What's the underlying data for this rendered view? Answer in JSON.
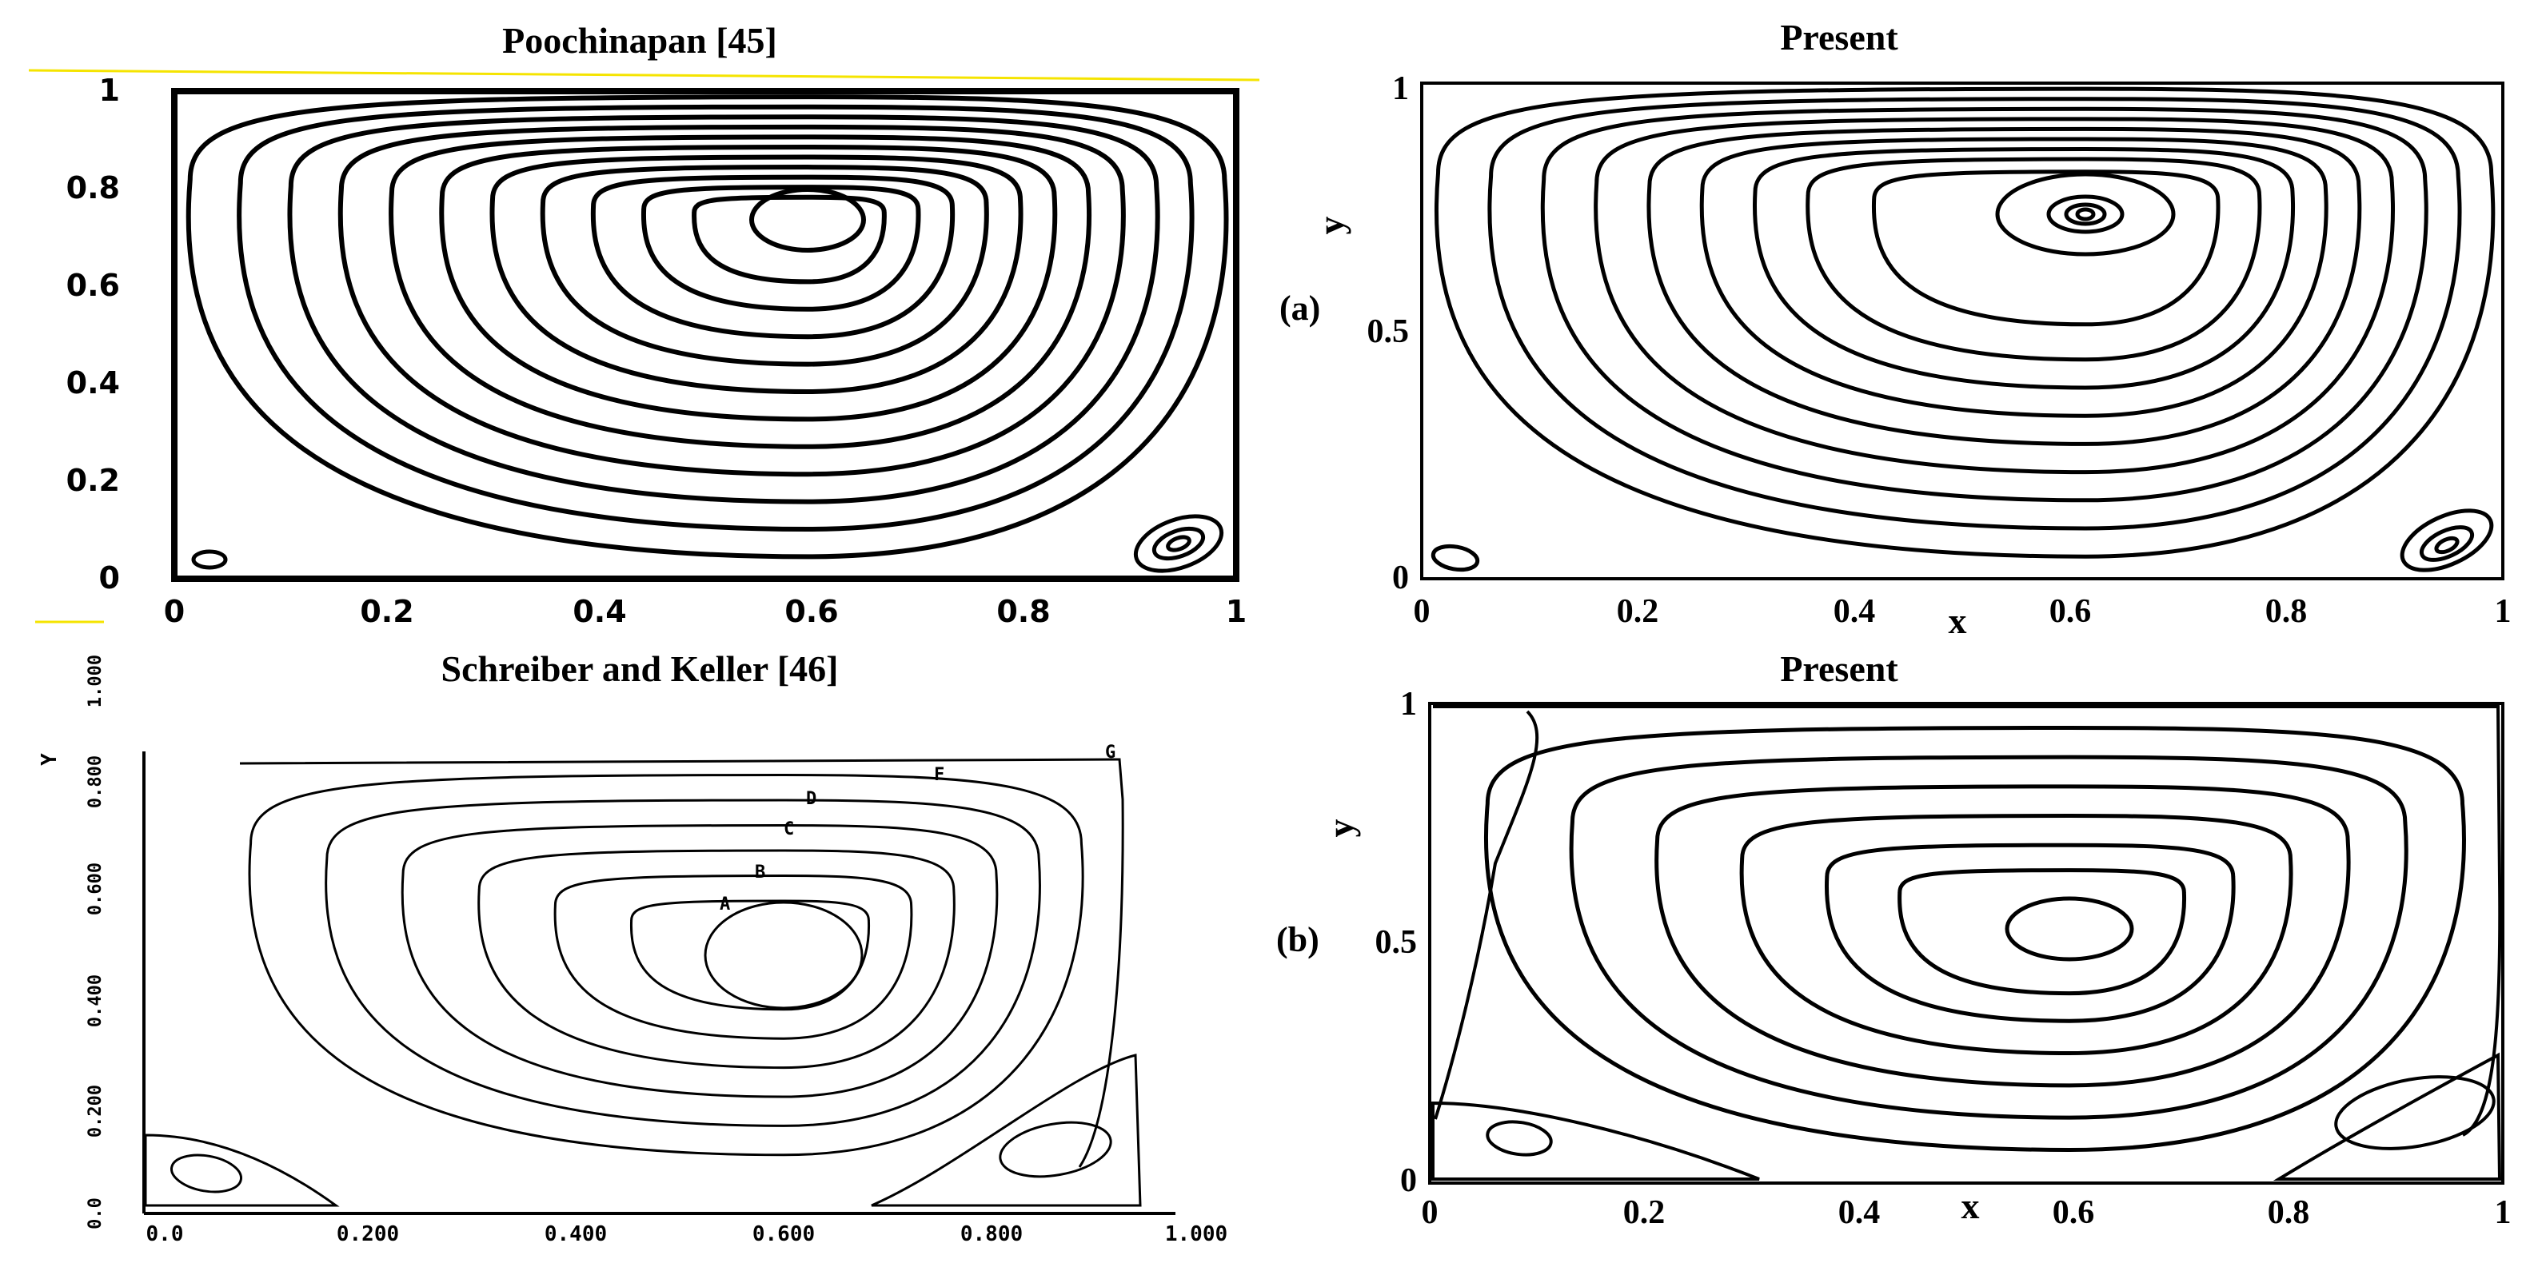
{
  "panels": [
    {
      "id": "poochinapan",
      "title": "Poochinapan [45]",
      "x_ticks": [
        "0",
        "0.2",
        "0.4",
        "0.6",
        "0.8",
        "1"
      ],
      "y_ticks": [
        "0",
        "0.2",
        "0.4",
        "0.6",
        "0.8",
        "1"
      ]
    },
    {
      "id": "present-a",
      "title": "Present",
      "tag": "(a)",
      "x_label": "x",
      "y_label": "y",
      "x_ticks": [
        "0",
        "0.2",
        "0.4",
        "0.6",
        "0.8",
        "1"
      ],
      "y_ticks": [
        "0",
        "0.5",
        "1"
      ]
    },
    {
      "id": "schreiber-keller",
      "title": "Schreiber and Keller [46]",
      "y_label": "Y",
      "x_ticks": [
        "0.0",
        "0.200",
        "0.400",
        "0.600",
        "0.800",
        "1.000"
      ],
      "y_ticks": [
        "0.0",
        "0.200",
        "0.400",
        "0.600",
        "0.800",
        "1.000"
      ],
      "contour_labels": [
        "G",
        "F",
        "D",
        "C",
        "B",
        "A"
      ]
    },
    {
      "id": "present-b",
      "title": "Present",
      "tag": "(b)",
      "x_label": "x",
      "y_label": "y",
      "x_ticks": [
        "0",
        "0.2",
        "0.4",
        "0.6",
        "0.8",
        "1"
      ],
      "y_ticks": [
        "0",
        "0.5",
        "1"
      ]
    }
  ]
}
